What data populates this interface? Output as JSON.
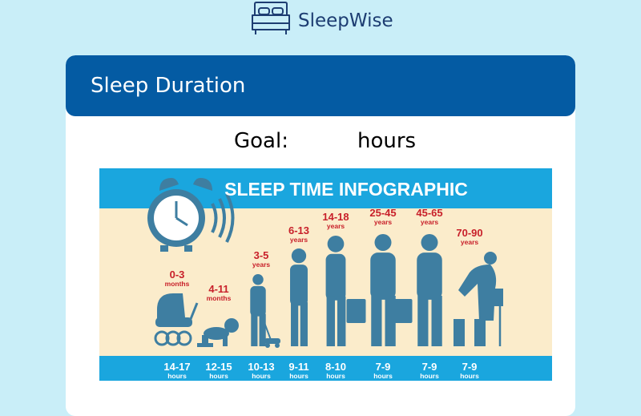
{
  "app": {
    "name": "SleepWise",
    "logo_icon": "bed-icon"
  },
  "card": {
    "title": "Sleep Duration"
  },
  "goal": {
    "label": "Goal:",
    "value": "",
    "placeholder": "",
    "unit": "hours"
  },
  "infographic": {
    "title": "SLEEP TIME INFOGRAPHIC",
    "colors": {
      "band": "#1aa6de",
      "background": "#fbeccb",
      "silhouette": "#3e7ea1",
      "age_text": "#c8202a",
      "title_text": "#ffffff"
    },
    "groups": [
      {
        "age": "0-3",
        "unit": "months",
        "hours": "14-17",
        "hours_unit": "hours",
        "figure": "stroller-icon"
      },
      {
        "age": "4-11",
        "unit": "months",
        "hours": "12-15",
        "hours_unit": "hours",
        "figure": "crawling-baby-icon"
      },
      {
        "age": "3-5",
        "unit": "years",
        "hours": "10-13",
        "hours_unit": "hours",
        "figure": "toddler-icon"
      },
      {
        "age": "6-13",
        "unit": "years",
        "hours": "9-11",
        "hours_unit": "hours",
        "figure": "child-icon"
      },
      {
        "age": "14-18",
        "unit": "years",
        "hours": "8-10",
        "hours_unit": "hours",
        "figure": "teen-icon"
      },
      {
        "age": "25-45",
        "unit": "years",
        "hours": "7-9",
        "hours_unit": "hours",
        "figure": "adult-briefcase-icon"
      },
      {
        "age": "45-65",
        "unit": "years",
        "hours": "7-9",
        "hours_unit": "hours",
        "figure": "middle-aged-briefcase-icon"
      },
      {
        "age": "70-90",
        "unit": "years",
        "hours": "7-9",
        "hours_unit": "hours",
        "figure": "elderly-cane-icon"
      }
    ]
  }
}
